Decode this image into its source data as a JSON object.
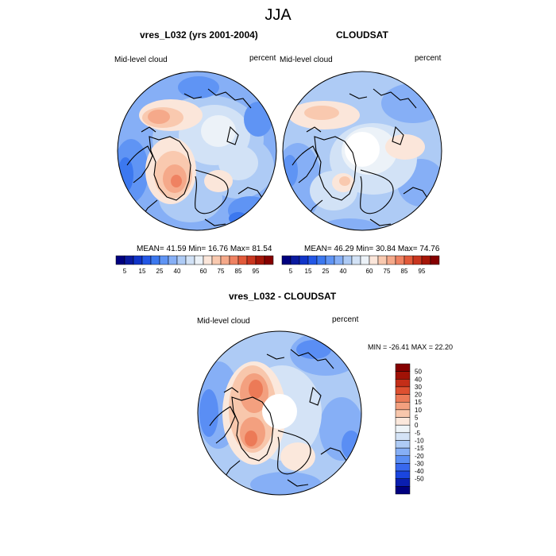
{
  "main_title": "JJA",
  "colors": {
    "abs_scale": [
      "#00007f",
      "#0a1a9f",
      "#1034c8",
      "#2357e6",
      "#3c78ef",
      "#5f94f4",
      "#86aff6",
      "#aecbf5",
      "#d2e2f6",
      "#ecf2f8",
      "#fbe6da",
      "#f9c9af",
      "#f5a98a",
      "#ef8262",
      "#e25a3a",
      "#c9361f",
      "#a51608",
      "#850000"
    ],
    "diff_scale": [
      "#00007f",
      "#0a1eb0",
      "#1a45df",
      "#3868ee",
      "#5a8ef4",
      "#86aff6",
      "#aecbf5",
      "#d4e3f6",
      "#eef4f8",
      "#fbe8dc",
      "#f8c7ac",
      "#f3a07f",
      "#ec7a57",
      "#de5030",
      "#c42e18",
      "#a01206",
      "#850000"
    ]
  },
  "chart_data": [
    {
      "type": "heatmap",
      "title": "vres_L032 (yrs 2001-2004)",
      "left_label": "Mid-level cloud",
      "right_label": "percent",
      "stats": "MEAN=  41.59  Min=  16.76  Max=  81.54",
      "mean": 41.59,
      "min": 16.76,
      "max": 81.54,
      "colorbar_ticks": [
        "5",
        "15",
        "25",
        "40",
        "60",
        "75",
        "85",
        "95"
      ]
    },
    {
      "type": "heatmap",
      "title": "CLOUDSAT",
      "left_label": "Mid-level cloud",
      "right_label": "percent",
      "stats": "MEAN=  46.29  Min=  30.84  Max=  74.76",
      "mean": 46.29,
      "min": 30.84,
      "max": 74.76,
      "colorbar_ticks": [
        "5",
        "15",
        "25",
        "40",
        "60",
        "75",
        "85",
        "95"
      ]
    },
    {
      "type": "heatmap",
      "title": "vres_L032 - CLOUDSAT",
      "left_label": "Mid-level cloud",
      "right_label": "percent",
      "stats": "MIN = -26.41 MAX =  22.20",
      "min": -26.41,
      "max": 22.2,
      "colorbar_ticks": [
        "50",
        "40",
        "30",
        "20",
        "15",
        "10",
        "5",
        "0",
        "-5",
        "-10",
        "-15",
        "-20",
        "-30",
        "-40",
        "-50"
      ]
    }
  ]
}
